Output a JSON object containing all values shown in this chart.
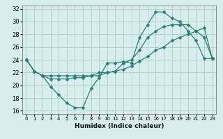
{
  "xlabel": "Humidex (Indice chaleur)",
  "x_ticks": [
    0,
    1,
    2,
    3,
    4,
    5,
    6,
    7,
    8,
    9,
    10,
    11,
    12,
    13,
    14,
    15,
    16,
    17,
    18,
    19,
    20,
    21,
    22,
    23
  ],
  "ylim": [
    15.5,
    32.5
  ],
  "yticks": [
    16,
    18,
    20,
    22,
    24,
    26,
    28,
    30,
    32
  ],
  "bg_color": "#d8eeed",
  "grid_color": "#aed4d0",
  "line_color": "#2a7d74",
  "line1_y": [
    24.0,
    22.2,
    21.5,
    19.8,
    18.5,
    17.2,
    16.5,
    16.5,
    19.5,
    21.2,
    23.5,
    23.5,
    23.7,
    23.5,
    27.5,
    29.5,
    31.5,
    31.5,
    30.5,
    30.0,
    28.5,
    27.0,
    24.2,
    24.2
  ],
  "line2_y": [
    24.0,
    22.2,
    21.5,
    21.0,
    21.0,
    21.0,
    21.2,
    21.2,
    21.5,
    22.0,
    22.0,
    22.2,
    22.5,
    23.0,
    23.8,
    24.5,
    25.5,
    26.0,
    27.0,
    27.5,
    28.0,
    28.5,
    29.0,
    24.2
  ],
  "line3_y": [
    24.0,
    22.2,
    21.5,
    21.5,
    21.5,
    21.5,
    21.5,
    21.5,
    21.5,
    21.5,
    22.0,
    22.2,
    23.5,
    24.0,
    25.5,
    27.5,
    28.5,
    29.2,
    29.5,
    29.5,
    29.5,
    28.5,
    27.5,
    24.2
  ]
}
